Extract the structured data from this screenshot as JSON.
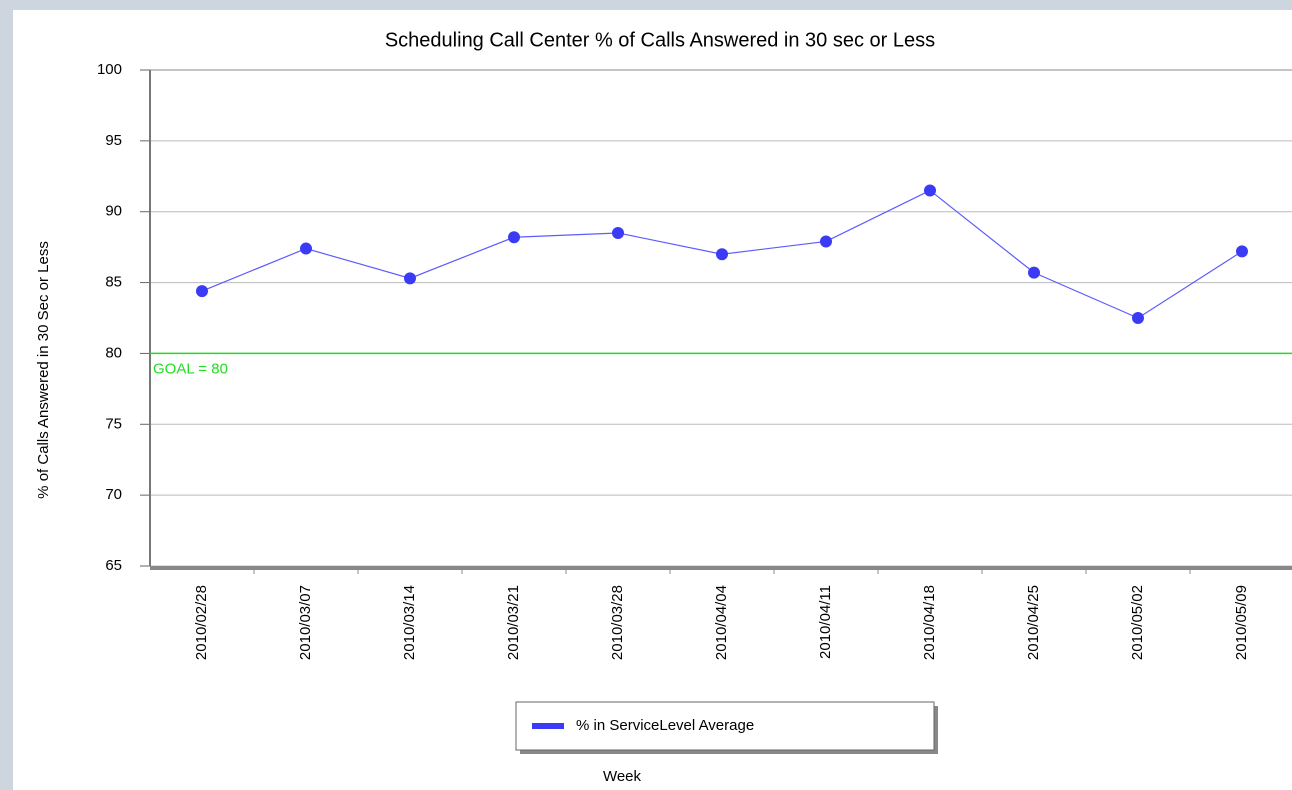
{
  "chart_data": {
    "type": "line",
    "title": "Scheduling Call Center % of Calls Answered in 30 sec or Less",
    "x_label": "Week",
    "y_label": "% of Calls Answered in 30 Sec or Less",
    "categories": [
      "2010/02/28",
      "2010/03/07",
      "2010/03/14",
      "2010/03/21",
      "2010/03/28",
      "2010/04/04",
      "2010/04/11",
      "2010/04/18",
      "2010/04/25",
      "2010/05/02",
      "2010/05/09"
    ],
    "series": [
      {
        "name": "% in ServiceLevel Average",
        "color": "#3b3bf5",
        "values": [
          84.4,
          87.4,
          85.3,
          88.2,
          88.5,
          87.0,
          87.9,
          91.5,
          85.7,
          82.5,
          87.2
        ]
      }
    ],
    "goal": {
      "value": 80,
      "label": "GOAL = 80",
      "color": "#22dd22"
    },
    "ylim": [
      65,
      100
    ],
    "yticks": [
      65,
      70,
      75,
      80,
      85,
      90,
      95,
      100
    ],
    "grid": true
  }
}
